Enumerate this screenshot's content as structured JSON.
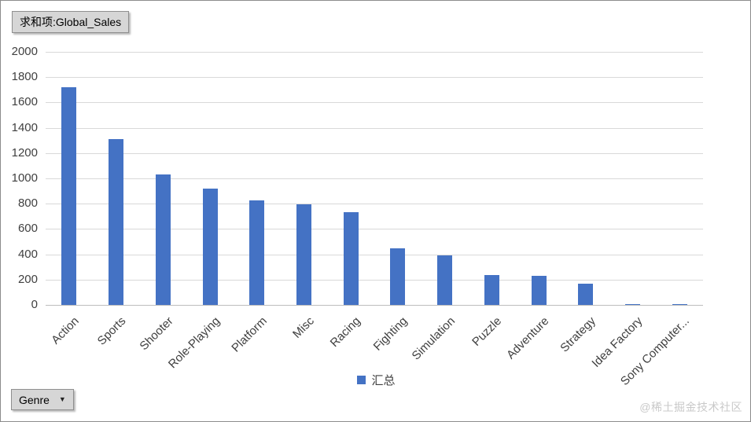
{
  "pivot": {
    "value_field_label": "求和项:Global_Sales",
    "axis_field_label": "Genre"
  },
  "watermark": {
    "text": "@稀土掘金技术社区"
  },
  "chart_data": {
    "type": "bar",
    "title": "求和项:Global_Sales",
    "categories": [
      "Action",
      "Sports",
      "Shooter",
      "Role-Playing",
      "Platform",
      "Misc",
      "Racing",
      "Fighting",
      "Simulation",
      "Puzzle",
      "Adventure",
      "Strategy",
      "Idea Factory",
      "Sony Computer..."
    ],
    "series": [
      {
        "name": "汇总",
        "values": [
          1720,
          1310,
          1030,
          920,
          825,
          795,
          730,
          445,
          390,
          235,
          230,
          170,
          4,
          2
        ]
      }
    ],
    "xlabel": "Genre",
    "ylabel": "",
    "ylim": [
      0,
      2000
    ],
    "ytick_step": 200,
    "grid": true,
    "legend_position": "bottom",
    "bar_color": "#4472C4"
  }
}
